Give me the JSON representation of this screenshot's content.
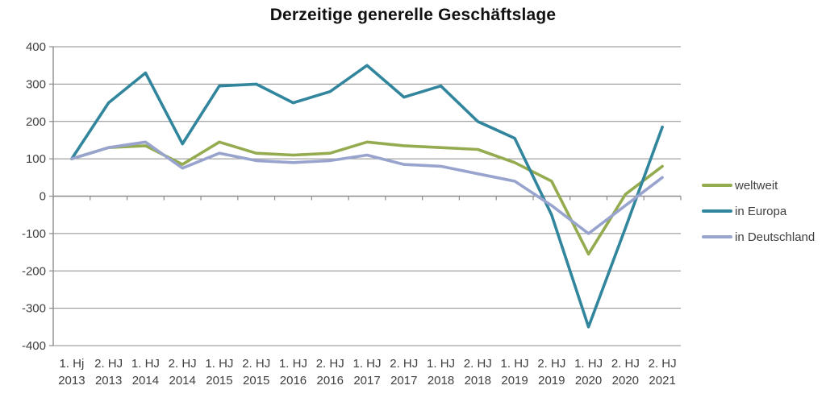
{
  "chart_data": {
    "type": "line",
    "title": "Derzeitige generelle Geschäftslage",
    "categories": [
      [
        "1. Hj",
        "2013"
      ],
      [
        "2. HJ",
        "2013"
      ],
      [
        "1. HJ",
        "2014"
      ],
      [
        "2. HJ",
        "2014"
      ],
      [
        "1. HJ",
        "2015"
      ],
      [
        "2. HJ",
        "2015"
      ],
      [
        "1. HJ",
        "2016"
      ],
      [
        "2. HJ",
        "2016"
      ],
      [
        "1. HJ",
        "2017"
      ],
      [
        "2. HJ",
        "2017"
      ],
      [
        "1. HJ",
        "2018"
      ],
      [
        "2. HJ",
        "2018"
      ],
      [
        "1. HJ",
        "2019"
      ],
      [
        "2. HJ",
        "2019"
      ],
      [
        "1. HJ",
        "2020"
      ],
      [
        "2. HJ",
        "2020"
      ],
      [
        "2. HJ",
        "2021"
      ]
    ],
    "series": [
      {
        "name": "weltweit",
        "color": "#94AB4F",
        "values": [
          100,
          130,
          135,
          85,
          145,
          115,
          110,
          115,
          145,
          135,
          130,
          125,
          90,
          40,
          -155,
          5,
          80
        ]
      },
      {
        "name": "in Europa",
        "color": "#31859C",
        "values": [
          100,
          250,
          330,
          140,
          295,
          300,
          250,
          280,
          350,
          265,
          295,
          200,
          155,
          -50,
          -350,
          -85,
          185
        ]
      },
      {
        "name": "in Deutschland",
        "color": "#98A4CE",
        "values": [
          100,
          130,
          145,
          75,
          115,
          95,
          90,
          95,
          110,
          85,
          80,
          60,
          40,
          -25,
          -100,
          -25,
          50
        ]
      }
    ],
    "ylim": [
      -400,
      400
    ],
    "ytick_step": 100,
    "xlabel": "",
    "ylabel": "",
    "grid": "horizontal",
    "legend_position": "right"
  },
  "colors": {
    "background": "#FFFFFF",
    "grid": "#8C8C8C",
    "axis": "#8C8C8C",
    "tick_text": "#3F3F3F",
    "title_text": "#111111"
  }
}
